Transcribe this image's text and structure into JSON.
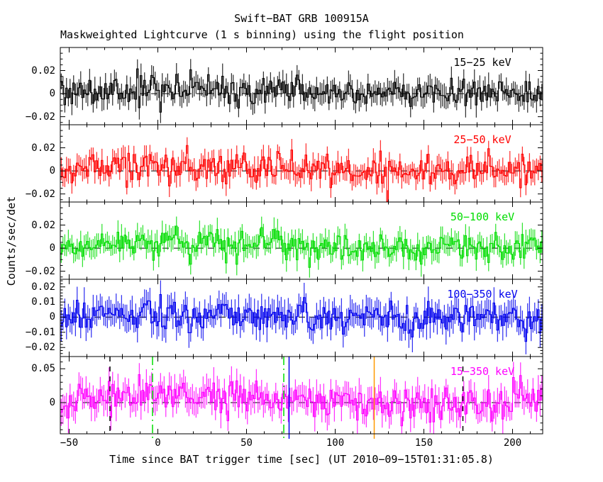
{
  "page": {
    "background": "#ffffff",
    "frame_color": "#000000"
  },
  "chart_data": {
    "type": "line",
    "title": "Swift−BAT GRB 100915A",
    "subtitle": "Maskweighted Lightcurve (1 s binning) using the flight position",
    "xlabel": "Time since BAT trigger time [sec] (UT 2010−09−15T01:31:05.8)",
    "ylabel": "Counts/sec/det",
    "x_range": [
      -55,
      217
    ],
    "bin_seconds": 1,
    "x_minor_step": 10,
    "x_major_step": 50,
    "x_major_ticks": [
      {
        "v": -50,
        "label": "−50"
      },
      {
        "v": 0,
        "label": "0"
      },
      {
        "v": 50,
        "label": "50"
      },
      {
        "v": 100,
        "label": "100"
      },
      {
        "v": 150,
        "label": "150"
      },
      {
        "v": 200,
        "label": "200"
      }
    ],
    "grid": false,
    "legend_position": "none",
    "zero_line": {
      "color": "#000000",
      "style": "dashed"
    },
    "bump": {
      "center": 20,
      "sigma_t": 42
    },
    "panels": [
      {
        "label": "15−25 keV",
        "color": "#000000",
        "ylim": [
          -0.027,
          0.04
        ],
        "yticks": [
          {
            "v": 0.02,
            "label": "0.02"
          },
          {
            "v": 0,
            "label": "0"
          },
          {
            "v": -0.02,
            "label": "−0.02"
          }
        ],
        "y_minor_step": 0.005,
        "y_major_step": 0.02,
        "noise_sigma": 0.0063,
        "error_bar": 0.0085,
        "bump_amp": 0.004,
        "seed": 3
      },
      {
        "label": "25−50 keV",
        "color": "#ff0000",
        "ylim": [
          -0.027,
          0.04
        ],
        "yticks": [
          {
            "v": 0.02,
            "label": "0.02"
          },
          {
            "v": 0,
            "label": "0"
          },
          {
            "v": -0.02,
            "label": "−0.02"
          }
        ],
        "y_minor_step": 0.005,
        "y_major_step": 0.02,
        "noise_sigma": 0.0068,
        "error_bar": 0.0085,
        "bump_amp": 0.004,
        "seed": 7
      },
      {
        "label": "50−100 keV",
        "color": "#00dd00",
        "ylim": [
          -0.027,
          0.04
        ],
        "yticks": [
          {
            "v": 0.02,
            "label": "0.02"
          },
          {
            "v": 0,
            "label": "0"
          },
          {
            "v": -0.02,
            "label": "−0.02"
          }
        ],
        "y_minor_step": 0.005,
        "y_major_step": 0.02,
        "noise_sigma": 0.0062,
        "error_bar": 0.0085,
        "bump_amp": 0.004,
        "seed": 13
      },
      {
        "label": "100−350 keV",
        "color": "#0000ee",
        "ylim": [
          -0.026,
          0.025
        ],
        "yticks": [
          {
            "v": 0.02,
            "label": "0.02"
          },
          {
            "v": 0.01,
            "label": "0.01"
          },
          {
            "v": 0,
            "label": "0"
          },
          {
            "v": -0.01,
            "label": "−0.01"
          },
          {
            "v": -0.02,
            "label": "−0.02"
          }
        ],
        "y_minor_step": 0.002,
        "y_major_step": 0.01,
        "noise_sigma": 0.006,
        "error_bar": 0.008,
        "bump_amp": 0.002,
        "seed": 21
      },
      {
        "label": "15−350 keV",
        "color": "#ff00ff",
        "ylim": [
          -0.046,
          0.068
        ],
        "yticks": [
          {
            "v": 0.05,
            "label": "0.05"
          },
          {
            "v": 0,
            "label": "0"
          }
        ],
        "y_minor_step": 0.01,
        "y_major_step": 0.05,
        "noise_sigma": 0.013,
        "error_bar": 0.018,
        "bump_amp": 0.012,
        "seed": 42
      }
    ],
    "event_lines": [
      {
        "t": -27,
        "color": "#000000",
        "style": "dashed"
      },
      {
        "t": -3,
        "color": "#00dd00",
        "style": "dash-dot"
      },
      {
        "t": 71,
        "color": "#00dd00",
        "style": "dash-dot"
      },
      {
        "t": 74,
        "color": "#0000ee",
        "style": "solid"
      },
      {
        "t": 122,
        "color": "#ff9900",
        "style": "solid"
      },
      {
        "t": 172,
        "color": "#000000",
        "style": "dashed"
      }
    ]
  }
}
